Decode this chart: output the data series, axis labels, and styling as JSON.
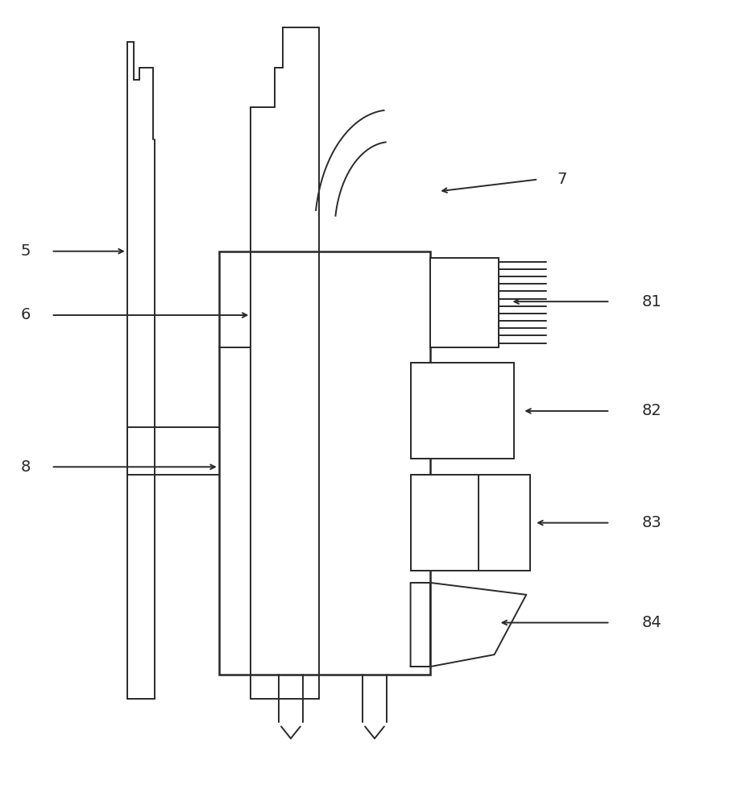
{
  "bg_color": "#ffffff",
  "line_color": "#2a2a2a",
  "lw": 1.4,
  "fig_w": 9.26,
  "fig_h": 10.0
}
